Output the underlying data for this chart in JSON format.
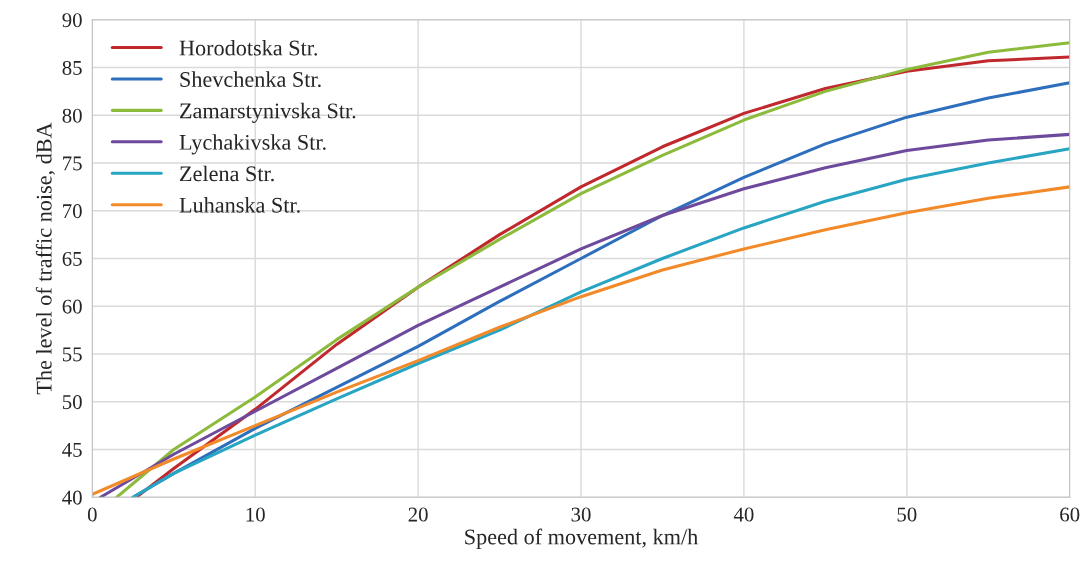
{
  "chart_data": {
    "type": "line",
    "xlabel": "Speed of movement, km/h",
    "ylabel": "The level of traffic noise, dBA",
    "xlim": [
      0,
      60
    ],
    "xticks": [
      0,
      10,
      20,
      30,
      40,
      50,
      60
    ],
    "ylim": [
      40,
      90
    ],
    "yticks": [
      40,
      45,
      50,
      55,
      60,
      65,
      70,
      75,
      80,
      85,
      90
    ],
    "grid": true,
    "legend": "top left",
    "marker": "none",
    "line_style": "solid",
    "series": [
      {
        "name": "Horodotska Str.",
        "color": "#c0282d",
        "x": [
          2.7,
          5,
          10,
          15,
          20,
          25,
          30,
          35,
          40,
          45,
          50,
          55,
          60
        ],
        "values": [
          40,
          43,
          49.2,
          56,
          62,
          67.5,
          72.5,
          76.7,
          80.2,
          82.8,
          84.6,
          85.7,
          86.1
        ]
      },
      {
        "name": "Shevchenka Str.",
        "color": "#2e6fbd",
        "x": [
          2.5,
          5,
          10,
          15,
          20,
          25,
          30,
          35,
          40,
          45,
          50,
          55,
          60
        ],
        "values": [
          40,
          42.5,
          47.2,
          51.5,
          55.8,
          60.5,
          65,
          69.5,
          73.5,
          77,
          79.8,
          81.8,
          83.4
        ]
      },
      {
        "name": "Zamarstynivska Str.",
        "color": "#8cbb3c",
        "x": [
          1.5,
          5,
          10,
          15,
          20,
          25,
          30,
          35,
          40,
          45,
          50,
          55,
          60
        ],
        "values": [
          40,
          45,
          50.5,
          56.5,
          62,
          67,
          71.8,
          75.8,
          79.5,
          82.5,
          84.8,
          86.6,
          87.6
        ]
      },
      {
        "name": "Lychakivska Str.",
        "color": "#6d4a9c",
        "x": [
          0.5,
          5,
          10,
          15,
          20,
          25,
          30,
          35,
          40,
          45,
          50,
          55,
          60
        ],
        "values": [
          40,
          44.5,
          49,
          53.5,
          58,
          62,
          66,
          69.5,
          72.3,
          74.5,
          76.3,
          77.4,
          78
        ]
      },
      {
        "name": "Zelena Str.",
        "color": "#27a5c3",
        "x": [
          2.5,
          5,
          10,
          15,
          20,
          25,
          30,
          35,
          40,
          45,
          50,
          55,
          60
        ],
        "values": [
          40,
          42.5,
          46.5,
          50.3,
          54,
          57.5,
          61.5,
          65,
          68.2,
          71,
          73.3,
          75,
          76.5
        ]
      },
      {
        "name": "Luhanska Str.",
        "color": "#f28a2a",
        "x": [
          0,
          5,
          10,
          15,
          20,
          25,
          30,
          35,
          40,
          45,
          50,
          55,
          60
        ],
        "values": [
          40.3,
          44,
          47.5,
          51,
          54.3,
          57.8,
          61,
          63.8,
          66,
          68,
          69.8,
          71.3,
          72.5
        ]
      }
    ]
  }
}
